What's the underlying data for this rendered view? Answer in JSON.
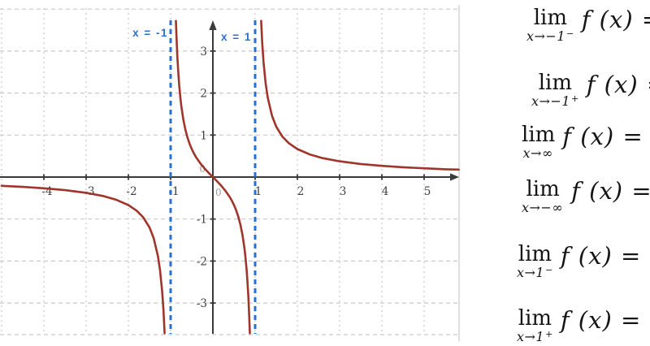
{
  "chart_data": {
    "type": "line",
    "title": "",
    "xlabel": "",
    "ylabel": "",
    "xlim": [
      -5.0,
      5.83
    ],
    "ylim": [
      -3.72,
      3.88
    ],
    "grid": "dashed",
    "x_tick_labels": [
      -4,
      -3,
      -2,
      -1,
      1,
      2,
      3,
      4,
      5
    ],
    "y_tick_labels": [
      3,
      2,
      1,
      -1,
      -2,
      -3
    ],
    "grid_x": [
      -5,
      -4,
      -3,
      -2,
      -1,
      1,
      2,
      3,
      4,
      5
    ],
    "grid_y": [
      -3,
      -2,
      -1,
      1,
      2,
      3,
      4
    ],
    "origin_label": "0",
    "axis_color": "#3a3a3a",
    "grid_color": "#c9c9c9",
    "tick_label_color": "#3f3f3f",
    "curve_color": "#a0352b",
    "asymptote_color": "#2a70d2",
    "asymptotes": [
      {
        "x": -1,
        "label": "x = -1"
      },
      {
        "x": 1,
        "label": "x = 1"
      }
    ],
    "series": [
      {
        "name": "left-branch",
        "points": [
          [
            -5.0,
            -0.208
          ],
          [
            -4.5,
            -0.234
          ],
          [
            -4.0,
            -0.267
          ],
          [
            -3.5,
            -0.311
          ],
          [
            -3.0,
            -0.375
          ],
          [
            -2.6,
            -0.451
          ],
          [
            -2.3,
            -0.536
          ],
          [
            -2.0,
            -0.667
          ],
          [
            -1.8,
            -0.804
          ],
          [
            -1.65,
            -0.958
          ],
          [
            -1.5,
            -1.2
          ],
          [
            -1.4,
            -1.458
          ],
          [
            -1.3,
            -1.884
          ],
          [
            -1.25,
            -2.222
          ],
          [
            -1.2,
            -2.727
          ],
          [
            -1.17,
            -3.172
          ],
          [
            -1.143,
            -3.72
          ]
        ]
      },
      {
        "name": "middle-branch",
        "points": [
          [
            -0.8746,
            3.72
          ],
          [
            -0.86,
            3.303
          ],
          [
            -0.84,
            2.853
          ],
          [
            -0.82,
            2.503
          ],
          [
            -0.8,
            2.222
          ],
          [
            -0.77,
            1.891
          ],
          [
            -0.75,
            1.714
          ],
          [
            -0.7,
            1.373
          ],
          [
            -0.65,
            1.126
          ],
          [
            -0.6,
            0.938
          ],
          [
            -0.55,
            0.789
          ],
          [
            -0.5,
            0.667
          ],
          [
            -0.45,
            0.564
          ],
          [
            -0.4,
            0.476
          ],
          [
            -0.3,
            0.33
          ],
          [
            -0.2,
            0.208
          ],
          [
            -0.1,
            0.101
          ],
          [
            0,
            0
          ],
          [
            0.1,
            -0.101
          ],
          [
            0.2,
            -0.208
          ],
          [
            0.3,
            -0.33
          ],
          [
            0.4,
            -0.476
          ],
          [
            0.45,
            -0.564
          ],
          [
            0.5,
            -0.667
          ],
          [
            0.55,
            -0.789
          ],
          [
            0.6,
            -0.938
          ],
          [
            0.65,
            -1.126
          ],
          [
            0.7,
            -1.373
          ],
          [
            0.75,
            -1.714
          ],
          [
            0.77,
            -1.891
          ],
          [
            0.8,
            -2.222
          ],
          [
            0.82,
            -2.503
          ],
          [
            0.84,
            -2.853
          ],
          [
            0.86,
            -3.303
          ],
          [
            0.8746,
            -3.72
          ]
        ]
      },
      {
        "name": "right-branch",
        "points": [
          [
            1.143,
            3.72
          ],
          [
            1.17,
            3.172
          ],
          [
            1.2,
            2.727
          ],
          [
            1.25,
            2.222
          ],
          [
            1.3,
            1.884
          ],
          [
            1.4,
            1.458
          ],
          [
            1.5,
            1.2
          ],
          [
            1.65,
            0.958
          ],
          [
            1.8,
            0.804
          ],
          [
            2.0,
            0.667
          ],
          [
            2.3,
            0.536
          ],
          [
            2.6,
            0.451
          ],
          [
            3.0,
            0.375
          ],
          [
            3.5,
            0.311
          ],
          [
            4.0,
            0.267
          ],
          [
            4.5,
            0.234
          ],
          [
            5.0,
            0.208
          ],
          [
            5.5,
            0.186
          ],
          [
            5.82,
            0.177
          ]
        ]
      }
    ]
  },
  "limits": [
    {
      "op": "lim",
      "sub": "x→−1",
      "sup": "−",
      "rhs": "f (x) ="
    },
    {
      "op": "lim",
      "sub": "x→−1",
      "sup": "+",
      "rhs": "f (x) ="
    },
    {
      "op": "lim",
      "sub": "x→∞",
      "sup": "",
      "rhs": "f (x) ="
    },
    {
      "op": "lim",
      "sub": "x→−∞",
      "sup": "",
      "rhs": "f (x) ="
    },
    {
      "op": "lim",
      "sub": "x→1",
      "sup": "−",
      "rhs": "f (x) ="
    },
    {
      "op": "lim",
      "sub": "x→1",
      "sup": "+",
      "rhs": "f (x) ="
    }
  ]
}
